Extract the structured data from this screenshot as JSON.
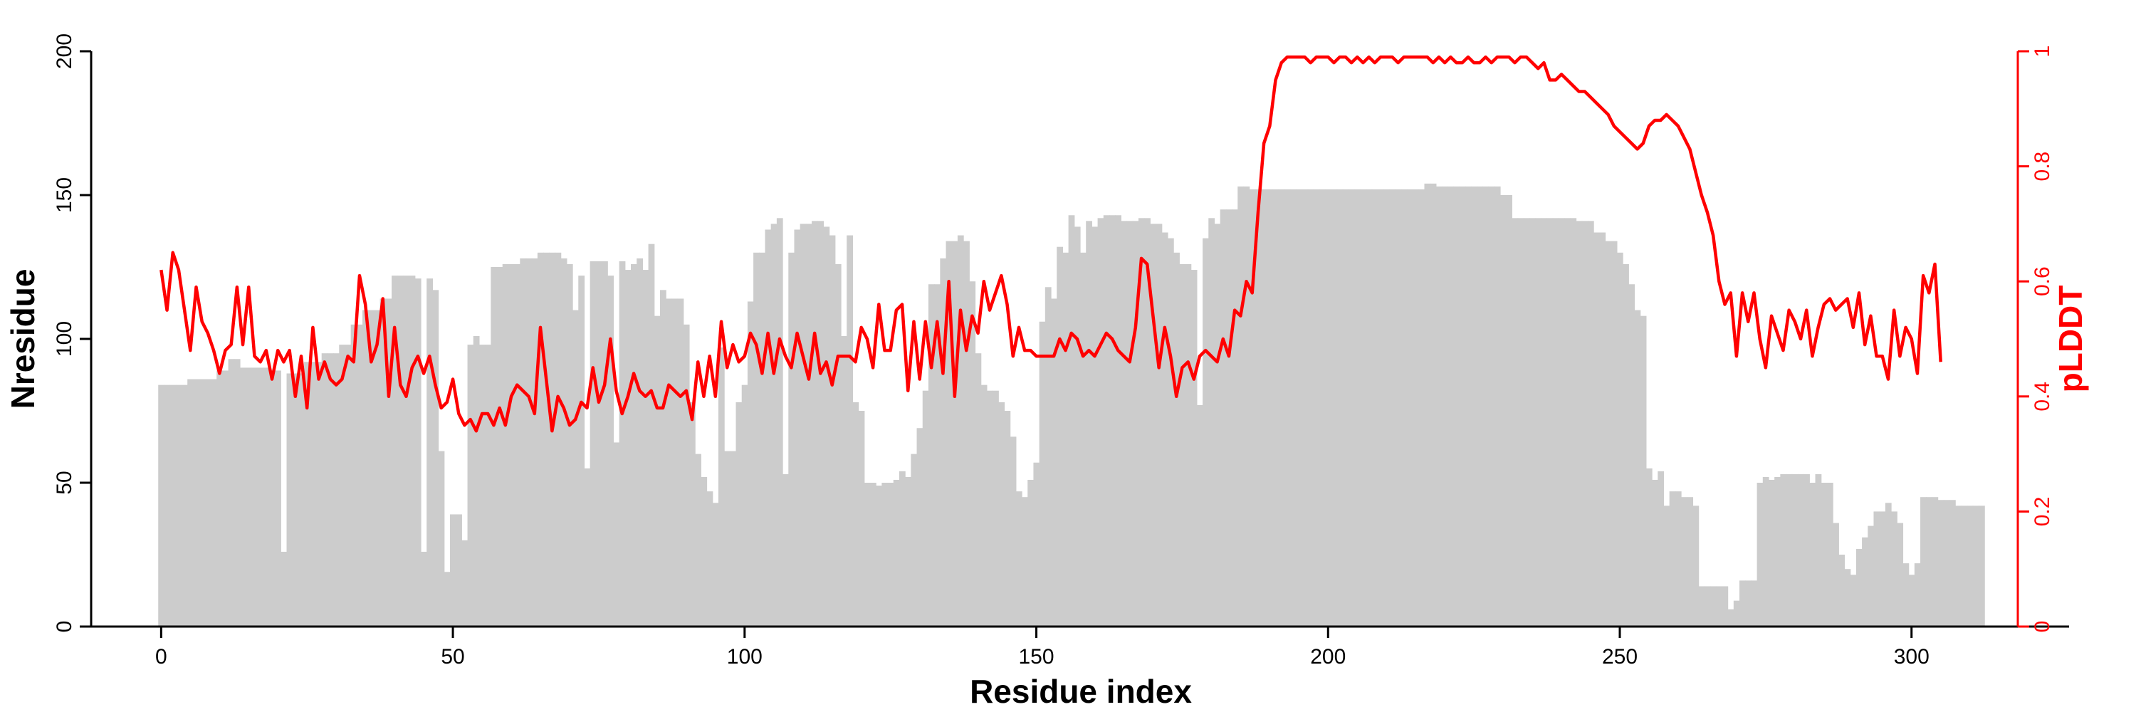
{
  "chart_data": {
    "type": "bar",
    "title": "",
    "xlabel": "Residue index",
    "ylabel": "Nresidue",
    "y2label": "pLDDT",
    "xlim": [
      -12,
      327
    ],
    "ylim": [
      0,
      200
    ],
    "y2lim": [
      0,
      1
    ],
    "xticks": [
      0,
      50,
      100,
      150,
      200,
      250,
      300
    ],
    "yticks": [
      0,
      50,
      100,
      150,
      200
    ],
    "y2ticks": [
      0,
      0.2,
      0.4,
      0.6,
      0.8,
      1
    ],
    "x_tick_labels": [
      "0",
      "50",
      "100",
      "150",
      "200",
      "250",
      "300"
    ],
    "y_tick_labels": [
      "0",
      "50",
      "100",
      "150",
      "200"
    ],
    "y2_tick_labels": [
      "0",
      "0.2",
      "0.4",
      "0.6",
      "0.8",
      "1"
    ],
    "grid": false,
    "colors": {
      "bars": "#cccccc",
      "line": "#ff0000",
      "axis": "#000000",
      "axis_right": "#ff0000"
    },
    "nresidue_segments": [
      [
        0,
        84
      ],
      [
        5,
        86
      ],
      [
        10,
        89
      ],
      [
        12,
        93
      ],
      [
        14,
        90
      ],
      [
        19,
        89
      ],
      [
        21,
        26
      ],
      [
        22,
        88
      ],
      [
        25,
        92
      ],
      [
        28,
        95
      ],
      [
        31,
        98
      ],
      [
        33,
        105
      ],
      [
        35,
        110
      ],
      [
        38,
        114
      ],
      [
        40,
        122
      ],
      [
        44,
        121
      ],
      [
        45,
        26
      ],
      [
        46,
        121
      ],
      [
        47,
        117
      ],
      [
        48,
        61
      ],
      [
        49,
        19
      ],
      [
        50,
        39
      ],
      [
        52,
        30
      ],
      [
        53,
        98
      ],
      [
        54,
        101
      ],
      [
        55,
        98
      ],
      [
        57,
        125
      ],
      [
        59,
        126
      ],
      [
        62,
        128
      ],
      [
        65,
        130
      ],
      [
        69,
        128
      ],
      [
        70,
        126
      ],
      [
        71,
        110
      ],
      [
        72,
        122
      ],
      [
        73,
        55
      ],
      [
        74,
        127
      ],
      [
        77,
        122
      ],
      [
        78,
        64
      ],
      [
        79,
        127
      ],
      [
        80,
        124
      ],
      [
        81,
        126
      ],
      [
        82,
        128
      ],
      [
        83,
        124
      ],
      [
        84,
        133
      ],
      [
        85,
        108
      ],
      [
        86,
        117
      ],
      [
        87,
        114
      ],
      [
        90,
        105
      ],
      [
        91,
        78
      ],
      [
        92,
        60
      ],
      [
        93,
        52
      ],
      [
        94,
        47
      ],
      [
        95,
        43
      ],
      [
        96,
        97
      ],
      [
        97,
        61
      ],
      [
        99,
        78
      ],
      [
        100,
        84
      ],
      [
        101,
        113
      ],
      [
        102,
        130
      ],
      [
        104,
        138
      ],
      [
        105,
        140
      ],
      [
        106,
        142
      ],
      [
        107,
        53
      ],
      [
        108,
        130
      ],
      [
        109,
        138
      ],
      [
        110,
        140
      ],
      [
        112,
        141
      ],
      [
        114,
        139
      ],
      [
        115,
        136
      ],
      [
        116,
        126
      ],
      [
        117,
        101
      ],
      [
        118,
        136
      ],
      [
        119,
        78
      ],
      [
        120,
        75
      ],
      [
        121,
        50
      ],
      [
        123,
        49
      ],
      [
        124,
        50
      ],
      [
        126,
        51
      ],
      [
        127,
        54
      ],
      [
        128,
        52
      ],
      [
        129,
        60
      ],
      [
        130,
        69
      ],
      [
        131,
        82
      ],
      [
        132,
        119
      ],
      [
        134,
        128
      ],
      [
        135,
        134
      ],
      [
        137,
        136
      ],
      [
        138,
        134
      ],
      [
        139,
        120
      ],
      [
        140,
        95
      ],
      [
        141,
        84
      ],
      [
        142,
        82
      ],
      [
        144,
        78
      ],
      [
        145,
        75
      ],
      [
        146,
        66
      ],
      [
        147,
        47
      ],
      [
        148,
        45
      ],
      [
        149,
        51
      ],
      [
        150,
        57
      ],
      [
        151,
        106
      ],
      [
        152,
        118
      ],
      [
        153,
        114
      ],
      [
        154,
        132
      ],
      [
        155,
        130
      ],
      [
        156,
        143
      ],
      [
        157,
        139
      ],
      [
        158,
        130
      ],
      [
        159,
        141
      ],
      [
        160,
        139
      ],
      [
        161,
        142
      ],
      [
        162,
        143
      ],
      [
        165,
        141
      ],
      [
        167,
        141
      ],
      [
        168,
        142
      ],
      [
        170,
        140
      ],
      [
        172,
        137
      ],
      [
        173,
        135
      ],
      [
        174,
        130
      ],
      [
        175,
        126
      ],
      [
        177,
        124
      ],
      [
        178,
        77
      ],
      [
        179,
        135
      ],
      [
        180,
        142
      ],
      [
        181,
        140
      ],
      [
        182,
        145
      ],
      [
        185,
        153
      ],
      [
        187,
        152
      ],
      [
        190,
        152
      ],
      [
        217,
        154
      ],
      [
        219,
        153
      ],
      [
        230,
        150
      ],
      [
        232,
        142
      ],
      [
        243,
        141
      ],
      [
        246,
        137
      ],
      [
        248,
        134
      ],
      [
        250,
        130
      ],
      [
        251,
        126
      ],
      [
        252,
        119
      ],
      [
        253,
        110
      ],
      [
        254,
        108
      ],
      [
        255,
        55
      ],
      [
        256,
        51
      ],
      [
        257,
        54
      ],
      [
        258,
        42
      ],
      [
        259,
        47
      ],
      [
        261,
        45
      ],
      [
        263,
        42
      ],
      [
        264,
        14
      ],
      [
        266,
        14
      ],
      [
        268,
        14
      ],
      [
        269,
        6
      ],
      [
        270,
        9
      ],
      [
        271,
        16
      ],
      [
        274,
        50
      ],
      [
        275,
        52
      ],
      [
        276,
        51
      ],
      [
        277,
        52
      ],
      [
        278,
        53
      ],
      [
        282,
        53
      ],
      [
        283,
        50
      ],
      [
        284,
        53
      ],
      [
        285,
        50
      ],
      [
        287,
        36
      ],
      [
        288,
        25
      ],
      [
        289,
        20
      ],
      [
        290,
        18
      ],
      [
        291,
        27
      ],
      [
        292,
        31
      ],
      [
        293,
        35
      ],
      [
        294,
        40
      ],
      [
        296,
        43
      ],
      [
        297,
        40
      ],
      [
        298,
        36
      ],
      [
        299,
        22
      ],
      [
        300,
        18
      ],
      [
        301,
        22
      ],
      [
        302,
        45
      ],
      [
        305,
        44
      ],
      [
        308,
        42
      ],
      [
        313,
        0
      ]
    ],
    "plddt": [
      0.62,
      0.55,
      0.65,
      0.62,
      0.55,
      0.48,
      0.59,
      0.53,
      0.51,
      0.48,
      0.44,
      0.48,
      0.49,
      0.59,
      0.49,
      0.59,
      0.47,
      0.46,
      0.48,
      0.43,
      0.48,
      0.46,
      0.48,
      0.4,
      0.47,
      0.38,
      0.52,
      0.43,
      0.46,
      0.43,
      0.42,
      0.43,
      0.47,
      0.46,
      0.61,
      0.56,
      0.46,
      0.49,
      0.57,
      0.4,
      0.52,
      0.42,
      0.4,
      0.45,
      0.47,
      0.44,
      0.47,
      0.42,
      0.38,
      0.39,
      0.43,
      0.37,
      0.35,
      0.36,
      0.34,
      0.37,
      0.37,
      0.35,
      0.38,
      0.35,
      0.4,
      0.42,
      0.41,
      0.4,
      0.37,
      0.52,
      0.43,
      0.34,
      0.4,
      0.38,
      0.35,
      0.36,
      0.39,
      0.38,
      0.45,
      0.39,
      0.42,
      0.5,
      0.41,
      0.37,
      0.4,
      0.44,
      0.41,
      0.4,
      0.41,
      0.38,
      0.38,
      0.42,
      0.41,
      0.4,
      0.41,
      0.36,
      0.46,
      0.4,
      0.47,
      0.4,
      0.53,
      0.45,
      0.49,
      0.46,
      0.47,
      0.51,
      0.49,
      0.44,
      0.51,
      0.44,
      0.5,
      0.47,
      0.45,
      0.51,
      0.47,
      0.43,
      0.51,
      0.44,
      0.46,
      0.42,
      0.47,
      0.47,
      0.47,
      0.46,
      0.52,
      0.5,
      0.45,
      0.56,
      0.48,
      0.48,
      0.55,
      0.56,
      0.41,
      0.53,
      0.43,
      0.53,
      0.45,
      0.53,
      0.44,
      0.6,
      0.4,
      0.55,
      0.48,
      0.54,
      0.51,
      0.6,
      0.55,
      0.58,
      0.61,
      0.56,
      0.47,
      0.52,
      0.48,
      0.48,
      0.47,
      0.47,
      0.47,
      0.47,
      0.5,
      0.48,
      0.51,
      0.5,
      0.47,
      0.48,
      0.47,
      0.49,
      0.51,
      0.5,
      0.48,
      0.47,
      0.46,
      0.52,
      0.64,
      0.63,
      0.54,
      0.45,
      0.52,
      0.47,
      0.4,
      0.45,
      0.46,
      0.43,
      0.47,
      0.48,
      0.47,
      0.46,
      0.5,
      0.47,
      0.55,
      0.54,
      0.6,
      0.58,
      0.72,
      0.84,
      0.87,
      0.95,
      0.98,
      0.99,
      0.99,
      0.99,
      0.99,
      0.98,
      0.99,
      0.99,
      0.99,
      0.98,
      0.99,
      0.99,
      0.98,
      0.99,
      0.98,
      0.99,
      0.98,
      0.99,
      0.99,
      0.99,
      0.98,
      0.99,
      0.99,
      0.99,
      0.99,
      0.99,
      0.98,
      0.99,
      0.98,
      0.99,
      0.98,
      0.98,
      0.99,
      0.98,
      0.98,
      0.99,
      0.98,
      0.99,
      0.99,
      0.99,
      0.98,
      0.99,
      0.99,
      0.98,
      0.97,
      0.98,
      0.95,
      0.95,
      0.96,
      0.95,
      0.94,
      0.93,
      0.93,
      0.92,
      0.91,
      0.9,
      0.89,
      0.87,
      0.86,
      0.85,
      0.84,
      0.83,
      0.84,
      0.87,
      0.88,
      0.88,
      0.89,
      0.88,
      0.87,
      0.85,
      0.83,
      0.79,
      0.75,
      0.72,
      0.68,
      0.6,
      0.56,
      0.58,
      0.47,
      0.58,
      0.53,
      0.58,
      0.5,
      0.45,
      0.54,
      0.51,
      0.48,
      0.55,
      0.53,
      0.5,
      0.55,
      0.47,
      0.52,
      0.56,
      0.57,
      0.55,
      0.56,
      0.57,
      0.52,
      0.58,
      0.49,
      0.54,
      0.47,
      0.47,
      0.43,
      0.55,
      0.47,
      0.52,
      0.5,
      0.44,
      0.61,
      0.58,
      0.63,
      0.46
    ]
  }
}
